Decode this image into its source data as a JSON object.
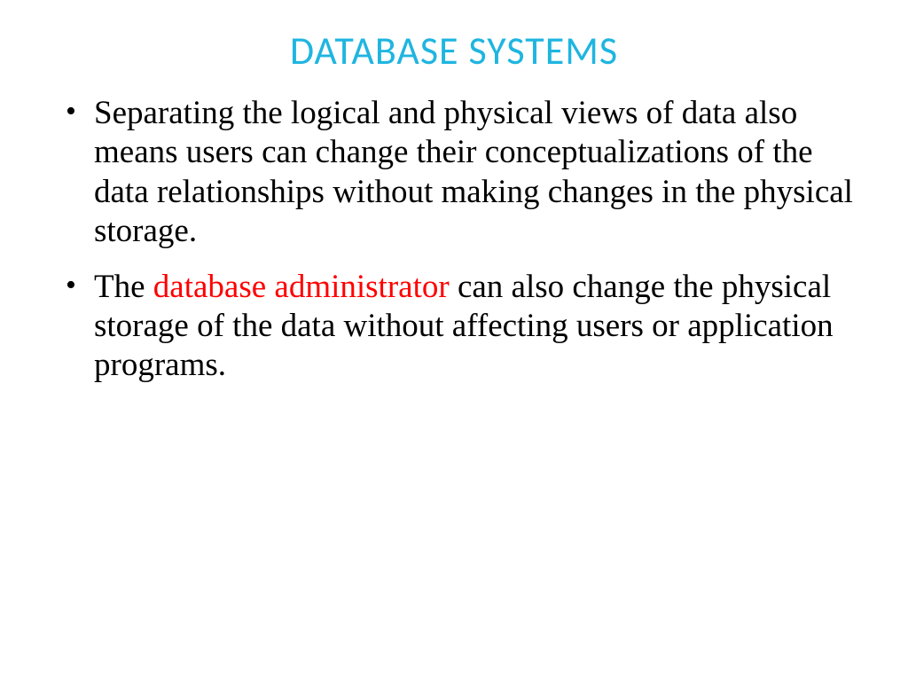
{
  "title": {
    "text": "DATABASE SYSTEMS",
    "color": "#1fb5e0",
    "fontsize": 44
  },
  "bullets": [
    {
      "segments": [
        {
          "text": "Separating the logical and physical views of data also means users can change their conceptualizations of the data relationships without making changes in the physical storage.",
          "color": "#000000"
        }
      ]
    },
    {
      "segments": [
        {
          "text": "The ",
          "color": "#000000"
        },
        {
          "text": "database administrator",
          "color": "#ff0000"
        },
        {
          "text": " can also change the physical storage of the data without affecting users or application programs.",
          "color": "#000000"
        }
      ]
    }
  ],
  "body": {
    "fontsize": 37,
    "color": "#000000"
  }
}
